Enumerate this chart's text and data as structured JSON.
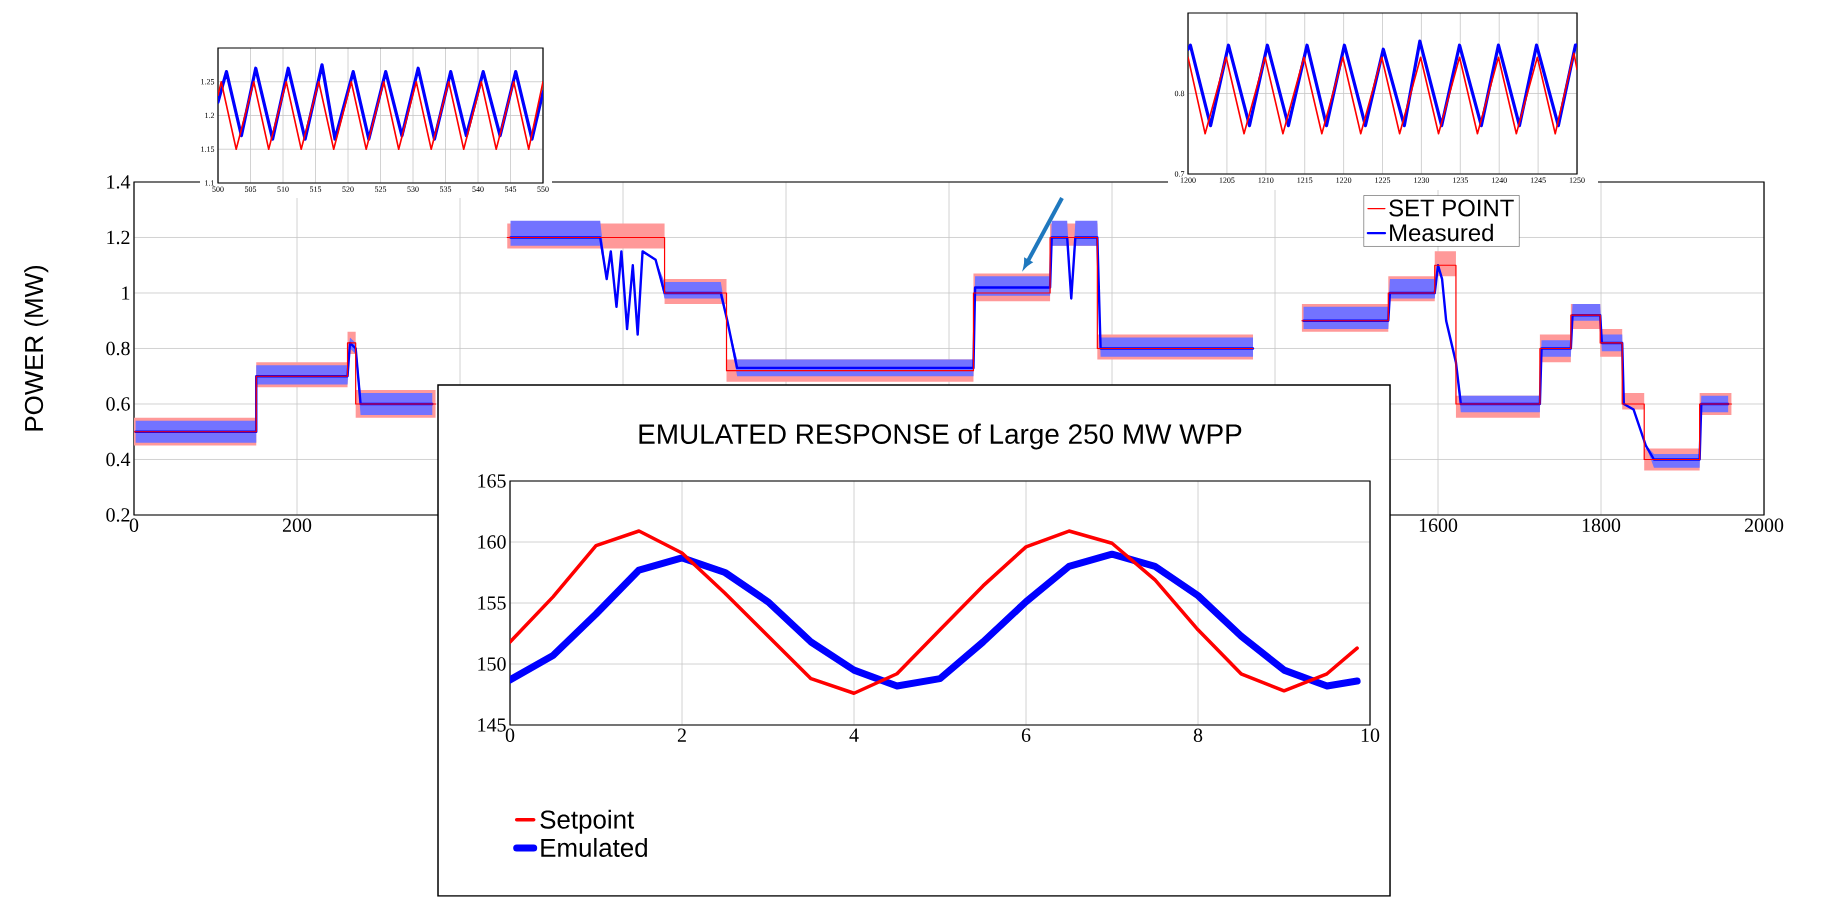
{
  "chart_data": [
    {
      "type": "line",
      "xlim": [
        500,
        550
      ],
      "ylim": [
        1.1,
        1.3
      ],
      "xticks": [
        500,
        505,
        510,
        515,
        520,
        525,
        530,
        535,
        540,
        545,
        550
      ],
      "yticks": [
        1.1,
        1.15,
        1.2,
        1.25
      ],
      "grid": true,
      "series": [
        {
          "color": "#ff0000",
          "x": [
            500,
            500.5,
            502.8,
            505.5,
            507.8,
            510.5,
            512.8,
            515.5,
            517.8,
            520.5,
            522.8,
            525.5,
            527.8,
            530.5,
            532.8,
            535.5,
            537.8,
            540.5,
            542.8,
            545.5,
            547.8,
            550
          ],
          "values": [
            1.23,
            1.25,
            1.15,
            1.25,
            1.15,
            1.25,
            1.15,
            1.25,
            1.15,
            1.25,
            1.15,
            1.25,
            1.15,
            1.25,
            1.15,
            1.25,
            1.15,
            1.25,
            1.15,
            1.25,
            1.15,
            1.25
          ]
        },
        {
          "color": "#0000ff",
          "x": [
            500,
            501.3,
            503.6,
            505.8,
            508.4,
            510.8,
            513.4,
            516,
            518,
            520.8,
            523.2,
            525.8,
            528.3,
            530.8,
            533.3,
            535.8,
            538.2,
            540.8,
            543.4,
            545.8,
            548.3,
            550
          ],
          "values": [
            1.22,
            1.265,
            1.17,
            1.27,
            1.165,
            1.27,
            1.165,
            1.275,
            1.165,
            1.265,
            1.165,
            1.265,
            1.17,
            1.27,
            1.165,
            1.265,
            1.17,
            1.265,
            1.17,
            1.265,
            1.165,
            1.235
          ]
        }
      ]
    },
    {
      "type": "line",
      "xlim": [
        1200,
        1250
      ],
      "ylim": [
        0.7,
        0.9
      ],
      "xticks": [
        1200,
        1205,
        1210,
        1215,
        1220,
        1225,
        1230,
        1235,
        1240,
        1245,
        1250
      ],
      "yticks": [
        0.7,
        0.8
      ],
      "grid": true,
      "series": [
        {
          "color": "#ff0000",
          "x": [
            1200,
            1202.2,
            1204.9,
            1207.2,
            1209.9,
            1212.2,
            1214.9,
            1217.2,
            1219.9,
            1222.2,
            1224.9,
            1227.2,
            1229.9,
            1232.2,
            1234.9,
            1237.2,
            1239.9,
            1242.2,
            1244.9,
            1247.2,
            1249.6,
            1250
          ],
          "values": [
            0.845,
            0.75,
            0.845,
            0.75,
            0.845,
            0.75,
            0.845,
            0.75,
            0.845,
            0.75,
            0.845,
            0.75,
            0.845,
            0.75,
            0.845,
            0.75,
            0.845,
            0.75,
            0.845,
            0.75,
            0.85,
            0.83
          ]
        },
        {
          "color": "#0000ff",
          "x": [
            1200,
            1200.3,
            1202.9,
            1205.2,
            1207.9,
            1210.2,
            1212.9,
            1215.3,
            1217.8,
            1220.1,
            1222.8,
            1225.1,
            1227.8,
            1229.8,
            1232.6,
            1234.9,
            1237.7,
            1239.9,
            1242.6,
            1244.8,
            1247.6,
            1249.8,
            1250
          ],
          "values": [
            0.855,
            0.86,
            0.76,
            0.86,
            0.76,
            0.86,
            0.76,
            0.86,
            0.76,
            0.86,
            0.76,
            0.855,
            0.76,
            0.865,
            0.76,
            0.86,
            0.76,
            0.86,
            0.76,
            0.86,
            0.76,
            0.86,
            0.86
          ]
        }
      ]
    },
    {
      "type": "line",
      "ylabel": "POWER (MW)",
      "xlim": [
        0,
        2000
      ],
      "ylim": [
        0.2,
        1.4
      ],
      "xticks": [
        0,
        200,
        {
          "value": 400,
          "label": null
        },
        {
          "value": 600,
          "label": null
        },
        {
          "value": 800,
          "label": null
        },
        {
          "value": 1000,
          "label": null
        },
        {
          "value": 1200,
          "label": null
        },
        {
          "value": 1400,
          "label": null
        },
        1600,
        1800,
        2000
      ],
      "yticks": [
        0.2,
        0.4,
        0.6,
        0.8,
        1,
        1.2,
        1.4
      ],
      "grid": true,
      "legend": "top right",
      "series": [
        {
          "name": "SET POINT",
          "color": "#ff0000",
          "x": [
            0,
            150,
            150,
            262,
            262,
            272,
            272,
            370,
            371,
            458,
            651,
            651,
            727,
            727,
            1030,
            1030,
            1124,
            1124,
            1182,
            1182,
            1373,
            1374,
            1433,
            1539,
            1539,
            1596,
            1596,
            1622,
            1622,
            1725,
            1725,
            1763,
            1763,
            1799,
            1799,
            1826,
            1826,
            1853,
            1853,
            1921,
            1921,
            1960
          ],
          "values": [
            0.5,
            0.5,
            0.7,
            0.7,
            0.82,
            0.82,
            0.6,
            0.6,
            null,
            1.2,
            1.2,
            1.0,
            1.0,
            0.72,
            0.72,
            1.0,
            1.0,
            1.2,
            1.2,
            0.8,
            0.8,
            null,
            0.9,
            0.9,
            1.0,
            1.0,
            1.1,
            1.1,
            0.6,
            0.6,
            0.8,
            0.8,
            0.92,
            0.92,
            0.82,
            0.82,
            0.6,
            0.6,
            0.4,
            0.4,
            0.6,
            0.6
          ],
          "lower": [
            0.45,
            0.45,
            0.66,
            0.66,
            0.78,
            0.78,
            0.55,
            0.55,
            null,
            1.16,
            1.16,
            0.96,
            0.96,
            0.68,
            0.68,
            0.97,
            0.97,
            1.17,
            1.17,
            0.76,
            0.76,
            null,
            0.86,
            0.86,
            0.97,
            0.97,
            1.06,
            1.06,
            0.55,
            0.55,
            0.75,
            0.75,
            0.87,
            0.87,
            0.77,
            0.77,
            0.58,
            0.58,
            0.36,
            0.36,
            0.56,
            0.56
          ],
          "upper": [
            0.55,
            0.55,
            0.75,
            0.75,
            0.86,
            0.86,
            0.65,
            0.65,
            null,
            1.25,
            1.25,
            1.05,
            1.05,
            0.76,
            0.76,
            1.07,
            1.07,
            1.25,
            1.25,
            0.85,
            0.85,
            null,
            0.96,
            0.96,
            1.06,
            1.06,
            1.15,
            1.15,
            0.63,
            0.63,
            0.85,
            0.85,
            0.96,
            0.96,
            0.87,
            0.87,
            0.64,
            0.64,
            0.44,
            0.44,
            0.64,
            0.64
          ]
        },
        {
          "name": "Measured",
          "color": "#0000ff",
          "x": [
            2,
            150,
            150,
            262,
            265,
            272,
            278,
            366,
            371,
            462,
            572,
            580,
            585,
            592,
            598,
            605,
            612,
            618,
            624,
            640,
            651,
            720,
            728,
            740,
            1030,
            1032,
            1124,
            1126,
            1145,
            1150,
            1155,
            1182,
            1186,
            1373,
            1374,
            1435,
            1539,
            1541,
            1596,
            1600,
            1605,
            1610,
            1622,
            1628,
            1725,
            1727,
            1763,
            1765,
            1799,
            1801,
            1826,
            1828,
            1840,
            1855,
            1865,
            1921,
            1923,
            1956
          ],
          "values": [
            0.5,
            0.5,
            0.7,
            0.7,
            0.82,
            0.8,
            0.6,
            0.6,
            null,
            1.2,
            1.2,
            1.05,
            1.15,
            0.95,
            1.15,
            0.87,
            1.1,
            0.85,
            1.15,
            1.12,
            1.0,
            1.0,
            0.9,
            0.73,
            0.73,
            1.02,
            1.02,
            1.2,
            1.2,
            0.98,
            1.2,
            1.2,
            0.8,
            0.8,
            null,
            0.9,
            0.9,
            1.0,
            1.0,
            1.1,
            1.05,
            0.9,
            0.75,
            0.6,
            0.6,
            0.8,
            0.8,
            0.92,
            0.92,
            0.82,
            0.82,
            0.6,
            0.58,
            0.45,
            0.4,
            0.4,
            0.6,
            0.6
          ],
          "lower": [
            0.46,
            0.46,
            0.67,
            0.67,
            0.8,
            0.78,
            0.56,
            0.56,
            null,
            1.17,
            1.17,
            1.05,
            1.15,
            0.95,
            1.15,
            0.87,
            1.1,
            0.85,
            1.15,
            1.12,
            0.98,
            0.98,
            0.9,
            0.7,
            0.7,
            0.99,
            0.99,
            1.17,
            1.17,
            0.98,
            1.17,
            1.17,
            0.77,
            0.77,
            null,
            0.87,
            0.87,
            0.98,
            0.98,
            1.1,
            1.05,
            0.9,
            0.75,
            0.57,
            0.57,
            0.77,
            0.77,
            0.9,
            0.9,
            0.79,
            0.79,
            0.6,
            0.58,
            0.45,
            0.37,
            0.37,
            0.57,
            0.57
          ],
          "upper": [
            0.54,
            0.54,
            0.74,
            0.74,
            0.84,
            0.82,
            0.64,
            0.64,
            null,
            1.26,
            1.26,
            1.05,
            1.15,
            0.95,
            1.15,
            0.87,
            1.1,
            0.85,
            1.15,
            1.12,
            1.04,
            1.04,
            0.9,
            0.76,
            0.76,
            1.06,
            1.06,
            1.26,
            1.26,
            0.98,
            1.26,
            1.26,
            0.84,
            0.84,
            null,
            0.95,
            0.95,
            1.05,
            1.05,
            1.1,
            1.05,
            0.9,
            0.75,
            0.63,
            0.63,
            0.83,
            0.83,
            0.96,
            0.96,
            0.85,
            0.85,
            0.6,
            0.58,
            0.45,
            0.42,
            0.42,
            0.63,
            0.63
          ]
        }
      ]
    },
    {
      "type": "line",
      "title": "EMULATED RESPONSE of Large 250 MW WPP",
      "xlim": [
        0,
        10
      ],
      "ylim": [
        145,
        165
      ],
      "xticks": [
        0,
        2,
        4,
        6,
        8,
        10
      ],
      "yticks": [
        145,
        150,
        155,
        160,
        165
      ],
      "grid": true,
      "legend": "bottom",
      "series": [
        {
          "name": "Setpoint",
          "color": "#ff0000",
          "x": [
            0,
            0.5,
            1,
            1.5,
            2,
            2.5,
            3,
            3.5,
            4,
            4.5,
            5,
            5.5,
            6,
            6.5,
            7,
            7.5,
            8,
            8.5,
            9,
            9.5,
            9.85
          ],
          "values": [
            151.8,
            155.5,
            159.7,
            160.9,
            159.1,
            155.8,
            152.3,
            148.8,
            147.6,
            149.2,
            152.8,
            156.4,
            159.6,
            160.9,
            159.9,
            156.9,
            152.8,
            149.2,
            147.8,
            149.2,
            151.3
          ]
        },
        {
          "name": "Emulated",
          "color": "#0000ff",
          "x": [
            0,
            0.5,
            1,
            1.5,
            2,
            2.5,
            3,
            3.5,
            4,
            4.5,
            5,
            5.5,
            6,
            6.5,
            7,
            7.5,
            8,
            8.5,
            9,
            9.5,
            9.85
          ],
          "values": [
            148.7,
            150.7,
            154.1,
            157.7,
            158.7,
            157.5,
            155.1,
            151.8,
            149.5,
            148.2,
            148.8,
            151.8,
            155.1,
            158.0,
            159.0,
            158.0,
            155.6,
            152.3,
            149.5,
            148.2,
            148.6
          ]
        }
      ]
    }
  ]
}
